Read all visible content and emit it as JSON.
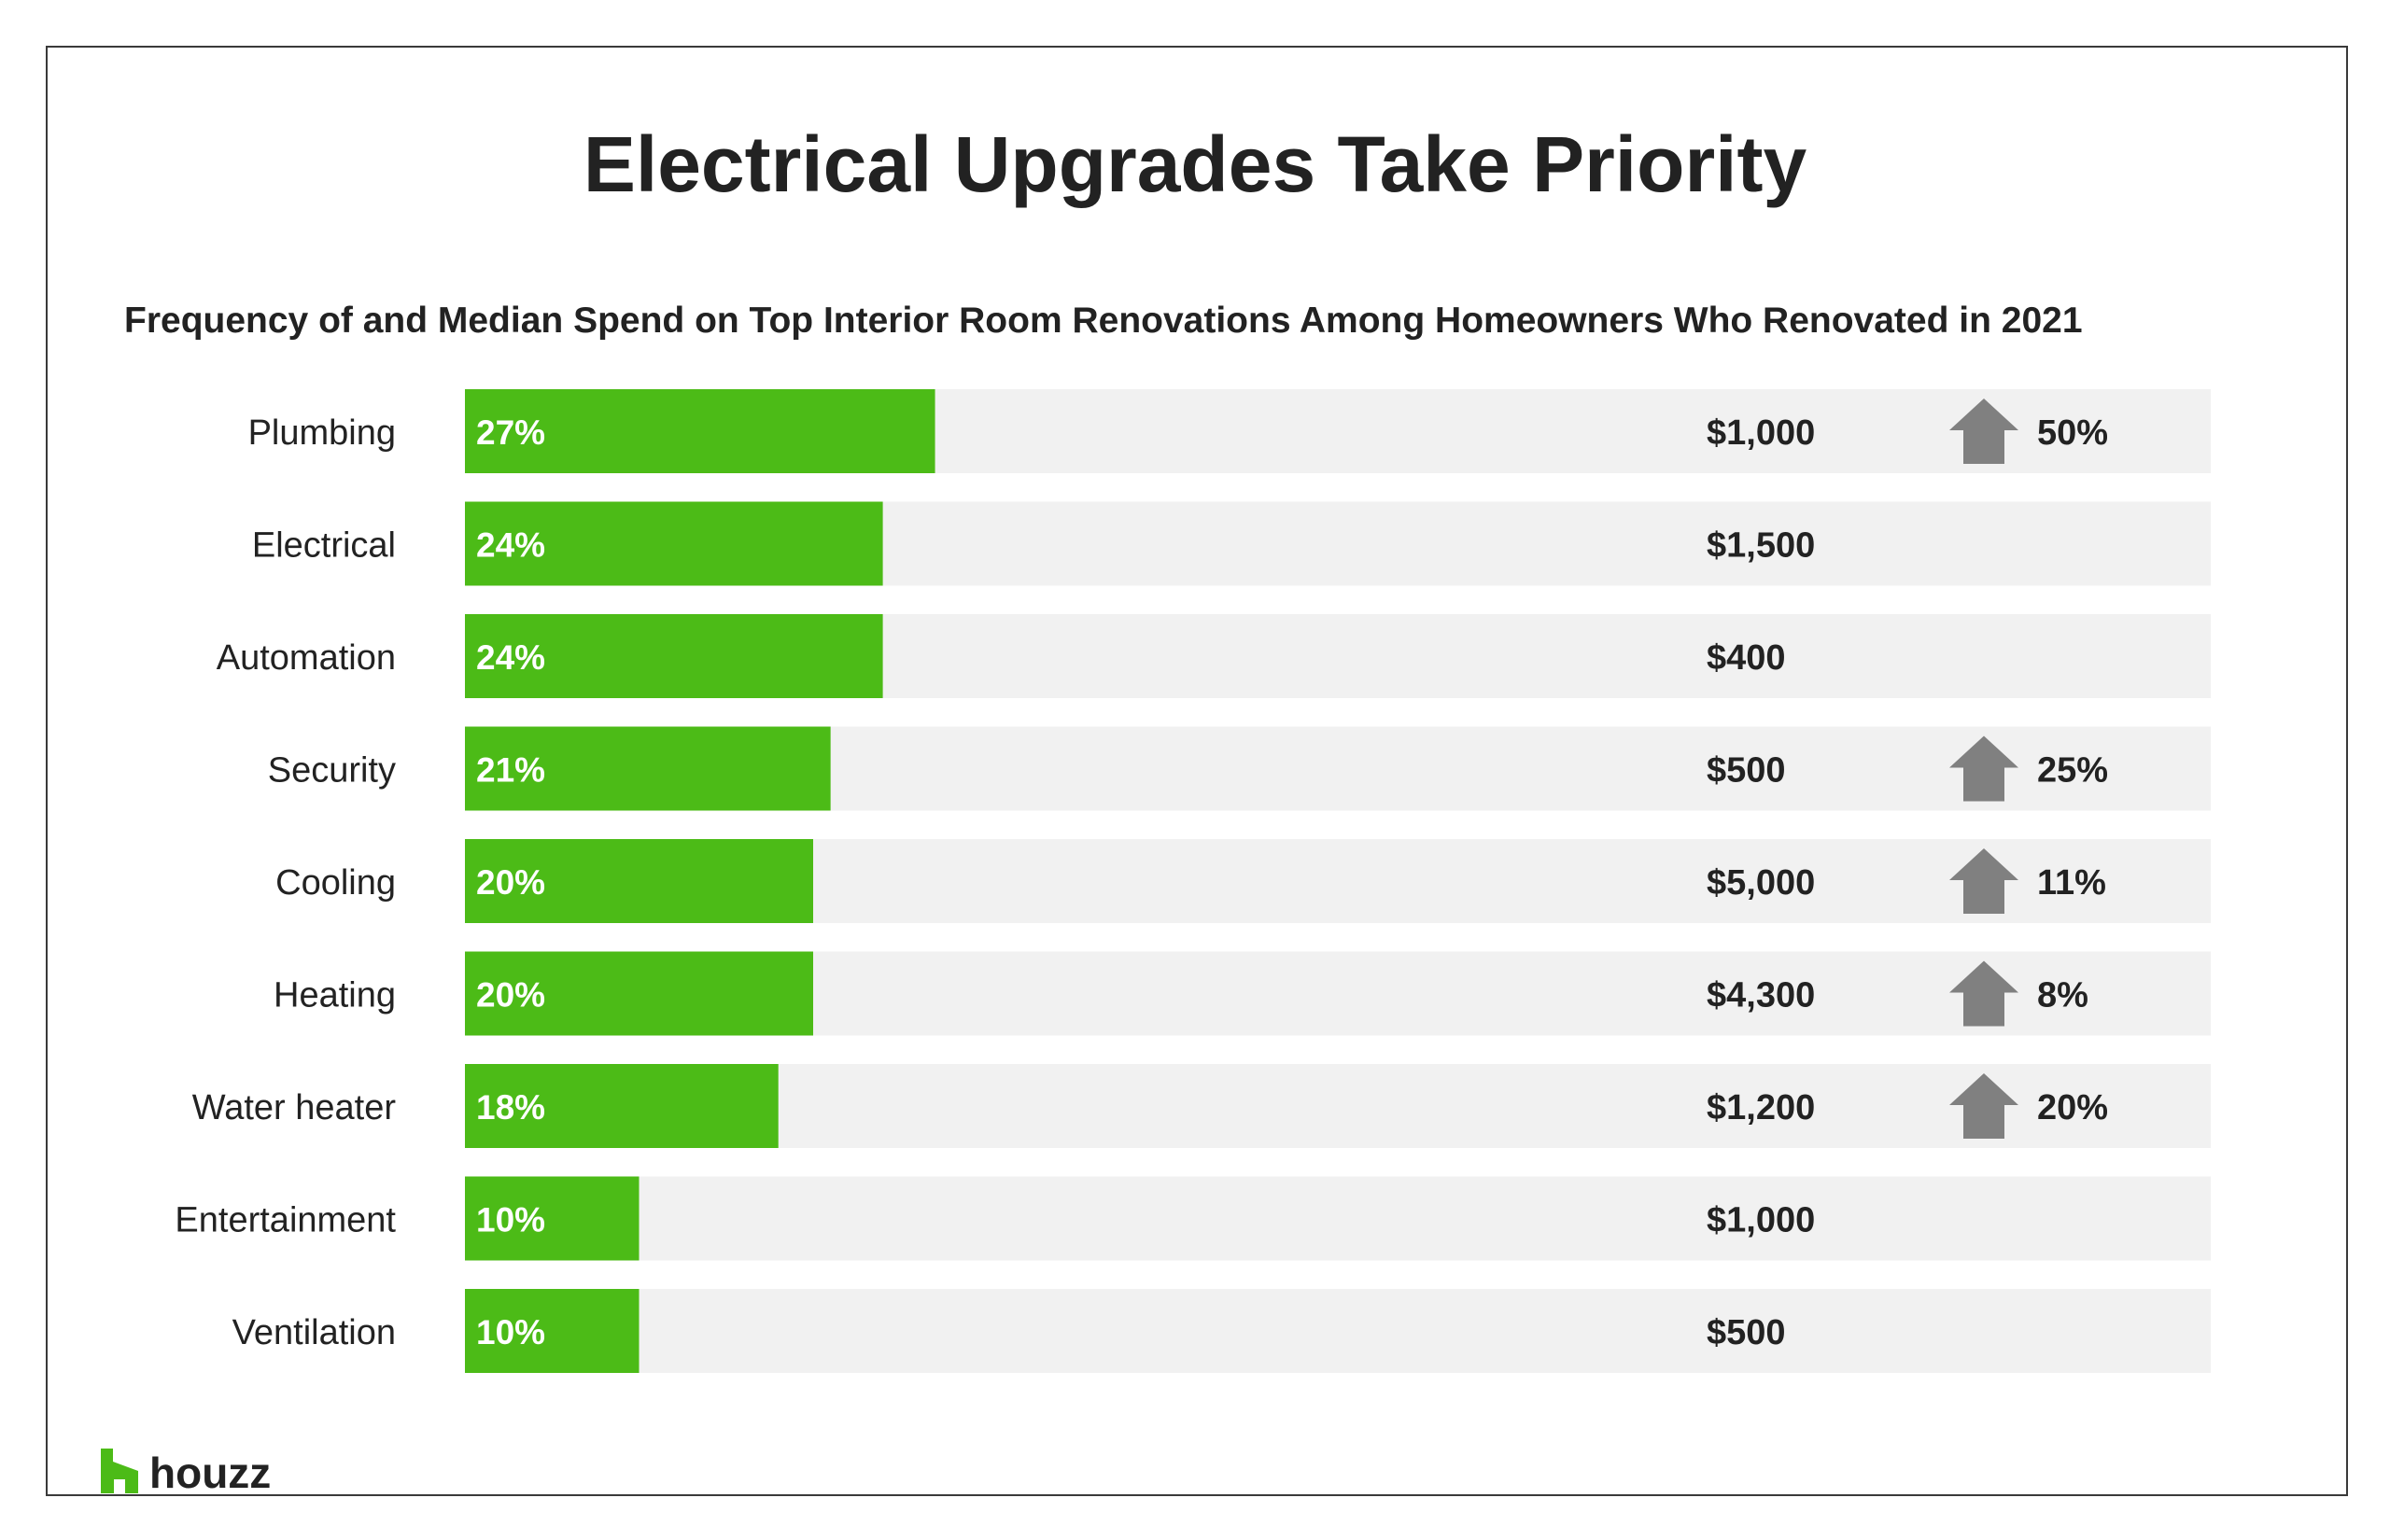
{
  "title": "Electrical Upgrades Take Priority",
  "subtitle": "Frequency of and Median Spend on Top Interior Room Renovations Among Homeowners Who Renovated in 2021",
  "logo_text": "houzz",
  "colors": {
    "bar": "#4cbb17",
    "track": "#f1f1f1",
    "arrow": "#808080",
    "text": "#222222",
    "frame": "#3a3a3a"
  },
  "chart_data": {
    "type": "bar",
    "orientation": "horizontal",
    "title": "Electrical Upgrades Take Priority",
    "subtitle": "Frequency of and Median Spend on Top Interior Room Renovations Among Homeowners Who Renovated in 2021",
    "xlim": [
      0,
      100
    ],
    "categories": [
      "Plumbing",
      "Electrical",
      "Automation",
      "Security",
      "Cooling",
      "Heating",
      "Water heater",
      "Entertainment",
      "Ventilation"
    ],
    "values": [
      27,
      24,
      24,
      21,
      20,
      20,
      18,
      10,
      10
    ],
    "value_labels": [
      "27%",
      "24%",
      "24%",
      "21%",
      "20%",
      "20%",
      "18%",
      "10%",
      "10%"
    ],
    "median_spend": [
      "$1,000",
      "$1,500",
      "$400",
      "$500",
      "$5,000",
      "$4,300",
      "$1,200",
      "$1,000",
      "$500"
    ],
    "spend_change": [
      "50%",
      "",
      "",
      "25%",
      "11%",
      "8%",
      "20%",
      "",
      ""
    ],
    "spend_change_direction": [
      "up",
      "",
      "",
      "up",
      "up",
      "up",
      "up",
      "",
      ""
    ]
  }
}
